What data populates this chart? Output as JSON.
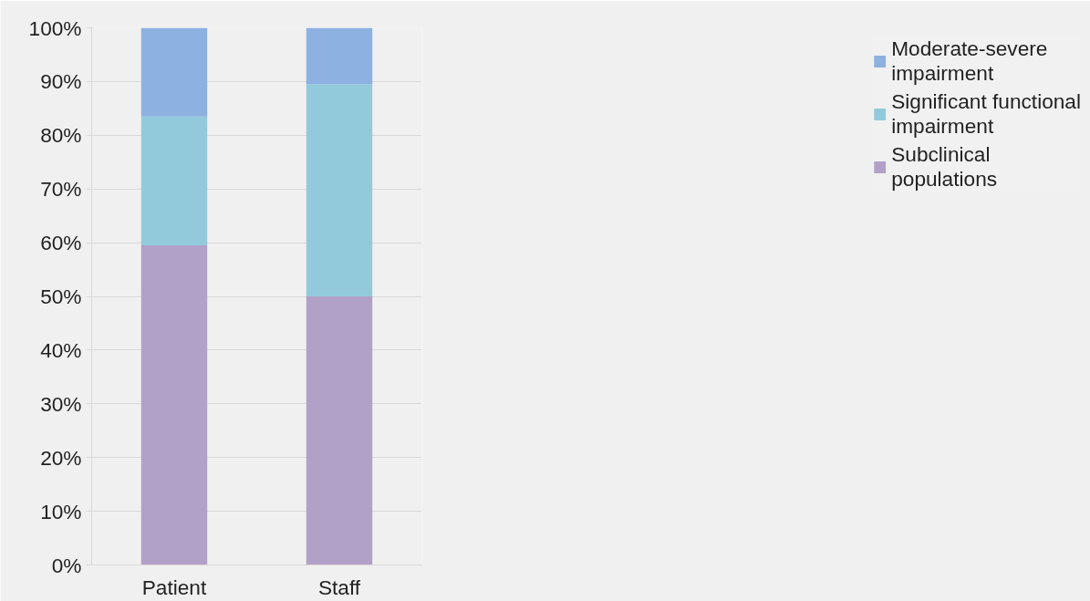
{
  "chart_data": {
    "type": "bar",
    "stacked": true,
    "categories": [
      "Patient",
      "Staff"
    ],
    "series": [
      {
        "name": "Subclinical populations",
        "color": "#b1a0c7",
        "values": [
          59.5,
          50
        ]
      },
      {
        "name": "Significant functional impairment",
        "color": "#93cadb",
        "values": [
          24,
          39.5
        ]
      },
      {
        "name": "Moderate-severe impairment",
        "color": "#8db1e1",
        "values": [
          16.5,
          10.5
        ]
      }
    ],
    "ylim": [
      0,
      100
    ],
    "yticks": [
      {
        "value": 0,
        "label": "0%"
      },
      {
        "value": 10,
        "label": "10%"
      },
      {
        "value": 20,
        "label": "20%"
      },
      {
        "value": 30,
        "label": "30%"
      },
      {
        "value": 40,
        "label": "40%"
      },
      {
        "value": 50,
        "label": "50%"
      },
      {
        "value": 60,
        "label": "60%"
      },
      {
        "value": 70,
        "label": "70%"
      },
      {
        "value": 80,
        "label": "80%"
      },
      {
        "value": 90,
        "label": "90%"
      },
      {
        "value": 100,
        "label": "100%"
      }
    ],
    "grid": "y",
    "legend": "right"
  }
}
